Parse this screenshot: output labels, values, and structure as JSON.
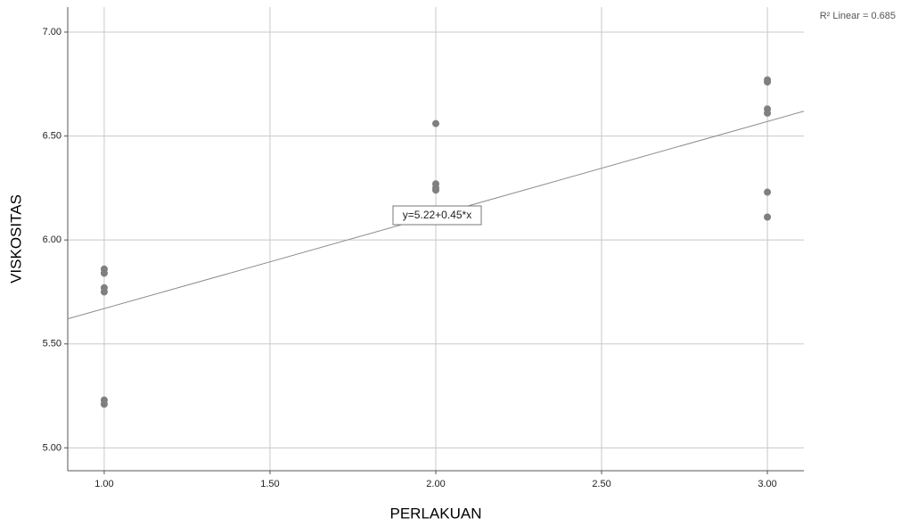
{
  "chart_data": {
    "type": "scatter",
    "x_label": "PERLAKUAN",
    "y_label": "VISKOSITAS",
    "x": [
      1,
      1,
      1,
      1,
      1,
      1,
      2,
      2,
      2,
      2,
      3,
      3,
      3,
      3,
      3,
      3
    ],
    "values": [
      5.86,
      5.84,
      5.77,
      5.75,
      5.23,
      5.21,
      6.56,
      6.27,
      6.25,
      6.24,
      6.77,
      6.76,
      6.63,
      6.61,
      6.23,
      6.11
    ],
    "color": "#7f7f7f",
    "xlim": [
      0.89,
      3.11
    ],
    "ylim": [
      4.89,
      7.12
    ],
    "xticks": [
      {
        "value": 1,
        "label": "1.00"
      },
      {
        "value": 1.5,
        "label": "1.50"
      },
      {
        "value": 2,
        "label": "2.00"
      },
      {
        "value": 2.5,
        "label": "2.50"
      },
      {
        "value": 3,
        "label": "3.00"
      }
    ],
    "yticks": [
      {
        "value": 5,
        "label": "5.00"
      },
      {
        "value": 5.5,
        "label": "5.50"
      },
      {
        "value": 6,
        "label": "6.00"
      },
      {
        "value": 6.5,
        "label": "6.50"
      },
      {
        "value": 7,
        "label": "7.00"
      }
    ],
    "grid": true,
    "fit": {
      "intercept": 5.22,
      "slope": 0.45,
      "label": "y=5.22+0.45*x",
      "r2_label": "R² Linear = 0.685",
      "color": "#8c8c8c"
    }
  }
}
